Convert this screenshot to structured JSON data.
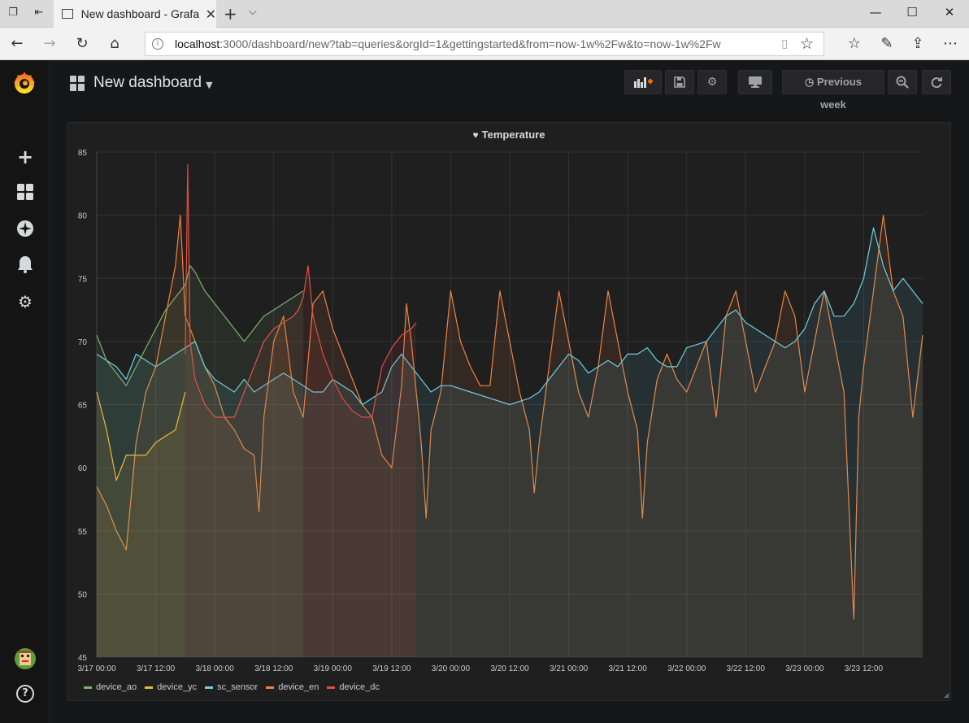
{
  "browser": {
    "tab_title": "New dashboard - Grafana",
    "url_host": "localhost",
    "url_rest": ":3000/dashboard/new?tab=queries&orgId=1&gettingstarted&from=now-1w%2Fw&to=now-1w%2Fw"
  },
  "dashboard": {
    "title": "New dashboard",
    "time_range_label": "Previous week"
  },
  "panel": {
    "title": "Temperature"
  },
  "colors": {
    "device_ao": "#7eb26d",
    "device_yc": "#eab839",
    "sc_sensor": "#6ed0e0",
    "device_en": "#ef843c",
    "device_dc": "#e24d42"
  },
  "chart_data": {
    "type": "line",
    "title": "Temperature",
    "ylim": [
      45,
      85
    ],
    "yticks": [
      "85",
      "80",
      "75",
      "70",
      "65",
      "60",
      "55",
      "50",
      "45"
    ],
    "xticks": [
      "3/17 00:00",
      "3/17 12:00",
      "3/18 00:00",
      "3/18 12:00",
      "3/19 00:00",
      "3/19 12:00",
      "3/20 00:00",
      "3/20 12:00",
      "3/21 00:00",
      "3/21 12:00",
      "3/22 00:00",
      "3/22 12:00",
      "3/23 00:00",
      "3/23 12:00"
    ],
    "xlim_hours": [
      0,
      168
    ],
    "grid": true,
    "legend_position": "bottom",
    "series": [
      {
        "name": "device_ao",
        "points": [
          [
            0,
            70.5
          ],
          [
            2,
            68.5
          ],
          [
            4,
            67.5
          ],
          [
            6,
            66.5
          ],
          [
            8,
            68
          ],
          [
            10,
            69.5
          ],
          [
            12,
            71
          ],
          [
            14,
            72.5
          ],
          [
            16,
            73.5
          ],
          [
            18,
            74.5
          ],
          [
            19,
            76
          ],
          [
            20,
            75.5
          ],
          [
            22,
            74
          ],
          [
            24,
            73
          ],
          [
            26,
            72
          ],
          [
            28,
            71
          ],
          [
            30,
            70
          ],
          [
            32,
            71
          ],
          [
            34,
            72
          ],
          [
            36,
            72.5
          ],
          [
            38,
            73
          ],
          [
            40,
            73.5
          ],
          [
            42,
            74
          ]
        ]
      },
      {
        "name": "device_yc",
        "points": [
          [
            0,
            66
          ],
          [
            2,
            63
          ],
          [
            4,
            59
          ],
          [
            6,
            61
          ],
          [
            8,
            61
          ],
          [
            10,
            61
          ],
          [
            12,
            62
          ],
          [
            14,
            62.5
          ],
          [
            16,
            63
          ],
          [
            18,
            66
          ]
        ]
      },
      {
        "name": "sc_sensor",
        "points": [
          [
            0,
            69
          ],
          [
            4,
            68
          ],
          [
            6,
            67
          ],
          [
            8,
            69
          ],
          [
            10,
            68.5
          ],
          [
            12,
            68
          ],
          [
            14,
            68.5
          ],
          [
            16,
            69
          ],
          [
            18,
            69.5
          ],
          [
            20,
            70
          ],
          [
            22,
            68
          ],
          [
            24,
            67
          ],
          [
            26,
            66.5
          ],
          [
            28,
            66
          ],
          [
            30,
            67
          ],
          [
            32,
            66
          ],
          [
            34,
            66.5
          ],
          [
            36,
            67
          ],
          [
            38,
            67.5
          ],
          [
            40,
            67
          ],
          [
            42,
            66.5
          ],
          [
            44,
            66
          ],
          [
            46,
            66
          ],
          [
            48,
            67
          ],
          [
            50,
            66.5
          ],
          [
            52,
            66
          ],
          [
            54,
            65
          ],
          [
            56,
            65.5
          ],
          [
            58,
            66
          ],
          [
            60,
            68
          ],
          [
            62,
            69
          ],
          [
            64,
            68
          ],
          [
            66,
            67
          ],
          [
            68,
            66
          ],
          [
            70,
            66.5
          ],
          [
            72,
            66.5
          ],
          [
            76,
            66
          ],
          [
            80,
            65.5
          ],
          [
            84,
            65
          ],
          [
            88,
            65.5
          ],
          [
            90,
            66
          ],
          [
            92,
            67
          ],
          [
            94,
            68
          ],
          [
            96,
            69
          ],
          [
            98,
            68.5
          ],
          [
            100,
            67.5
          ],
          [
            102,
            68
          ],
          [
            104,
            68.5
          ],
          [
            106,
            68
          ],
          [
            108,
            69
          ],
          [
            110,
            69
          ],
          [
            112,
            69.5
          ],
          [
            114,
            68.5
          ],
          [
            116,
            68
          ],
          [
            118,
            68
          ],
          [
            120,
            69.5
          ],
          [
            124,
            70
          ],
          [
            126,
            71
          ],
          [
            128,
            72
          ],
          [
            130,
            72.5
          ],
          [
            132,
            71.5
          ],
          [
            134,
            71
          ],
          [
            136,
            70.5
          ],
          [
            138,
            70
          ],
          [
            140,
            69.5
          ],
          [
            142,
            70
          ],
          [
            144,
            71
          ],
          [
            146,
            73
          ],
          [
            148,
            74
          ],
          [
            150,
            72
          ],
          [
            152,
            72
          ],
          [
            154,
            73
          ],
          [
            156,
            75
          ],
          [
            158,
            79
          ],
          [
            160,
            76
          ],
          [
            162,
            74
          ],
          [
            164,
            75
          ],
          [
            166,
            74
          ],
          [
            168,
            73
          ]
        ]
      },
      {
        "name": "device_en",
        "points": [
          [
            0,
            58.5
          ],
          [
            2,
            57
          ],
          [
            4,
            55
          ],
          [
            6,
            53.5
          ],
          [
            8,
            62
          ],
          [
            10,
            66
          ],
          [
            12,
            68
          ],
          [
            14,
            72
          ],
          [
            16,
            76
          ],
          [
            17,
            80
          ],
          [
            18,
            72
          ],
          [
            20,
            70
          ],
          [
            22,
            68
          ],
          [
            24,
            66.5
          ],
          [
            26,
            64
          ],
          [
            28,
            63
          ],
          [
            30,
            61.5
          ],
          [
            32,
            61
          ],
          [
            33,
            56.5
          ],
          [
            34,
            64
          ],
          [
            36,
            70
          ],
          [
            38,
            72
          ],
          [
            40,
            66
          ],
          [
            42,
            64
          ],
          [
            44,
            73
          ],
          [
            46,
            74
          ],
          [
            48,
            71
          ],
          [
            50,
            69
          ],
          [
            52,
            67
          ],
          [
            54,
            65
          ],
          [
            56,
            64
          ],
          [
            58,
            61
          ],
          [
            60,
            60
          ],
          [
            62,
            66.5
          ],
          [
            63,
            73
          ],
          [
            64,
            70
          ],
          [
            66,
            62
          ],
          [
            67,
            56
          ],
          [
            68,
            63
          ],
          [
            70,
            66
          ],
          [
            72,
            74
          ],
          [
            74,
            70
          ],
          [
            76,
            68
          ],
          [
            78,
            66.5
          ],
          [
            80,
            66.5
          ],
          [
            82,
            74
          ],
          [
            84,
            70
          ],
          [
            86,
            66
          ],
          [
            88,
            63
          ],
          [
            89,
            58
          ],
          [
            90,
            62
          ],
          [
            92,
            68
          ],
          [
            94,
            74
          ],
          [
            96,
            70
          ],
          [
            98,
            66
          ],
          [
            100,
            64
          ],
          [
            102,
            68
          ],
          [
            104,
            74
          ],
          [
            106,
            70
          ],
          [
            108,
            66
          ],
          [
            110,
            63
          ],
          [
            111,
            56
          ],
          [
            112,
            62
          ],
          [
            114,
            67
          ],
          [
            116,
            69
          ],
          [
            118,
            67
          ],
          [
            120,
            66
          ],
          [
            122,
            68
          ],
          [
            124,
            70
          ],
          [
            126,
            64
          ],
          [
            128,
            72
          ],
          [
            130,
            74
          ],
          [
            132,
            70
          ],
          [
            134,
            66
          ],
          [
            136,
            68
          ],
          [
            138,
            70
          ],
          [
            140,
            74
          ],
          [
            142,
            72
          ],
          [
            144,
            66
          ],
          [
            146,
            70
          ],
          [
            148,
            74
          ],
          [
            150,
            70
          ],
          [
            152,
            66
          ],
          [
            154,
            48
          ],
          [
            155,
            64
          ],
          [
            156,
            68
          ],
          [
            158,
            74
          ],
          [
            160,
            80
          ],
          [
            162,
            74
          ],
          [
            164,
            72
          ],
          [
            166,
            64
          ],
          [
            168,
            70.5
          ]
        ]
      },
      {
        "name": "device_dc",
        "points": [
          [
            18,
            69
          ],
          [
            18.5,
            84
          ],
          [
            19,
            70
          ],
          [
            20,
            67
          ],
          [
            22,
            65
          ],
          [
            24,
            64
          ],
          [
            26,
            64
          ],
          [
            28,
            64
          ],
          [
            30,
            66
          ],
          [
            32,
            68
          ],
          [
            34,
            70
          ],
          [
            36,
            71
          ],
          [
            38,
            71.5
          ],
          [
            40,
            72
          ],
          [
            41,
            72.5
          ],
          [
            42,
            73.5
          ],
          [
            43,
            76
          ],
          [
            44,
            72
          ],
          [
            46,
            69
          ],
          [
            48,
            67
          ],
          [
            50,
            65.5
          ],
          [
            52,
            64.5
          ],
          [
            54,
            64
          ],
          [
            56,
            64
          ],
          [
            58,
            68
          ],
          [
            60,
            69.5
          ],
          [
            62,
            70.5
          ],
          [
            64,
            71
          ],
          [
            65,
            71.5
          ]
        ]
      }
    ]
  }
}
